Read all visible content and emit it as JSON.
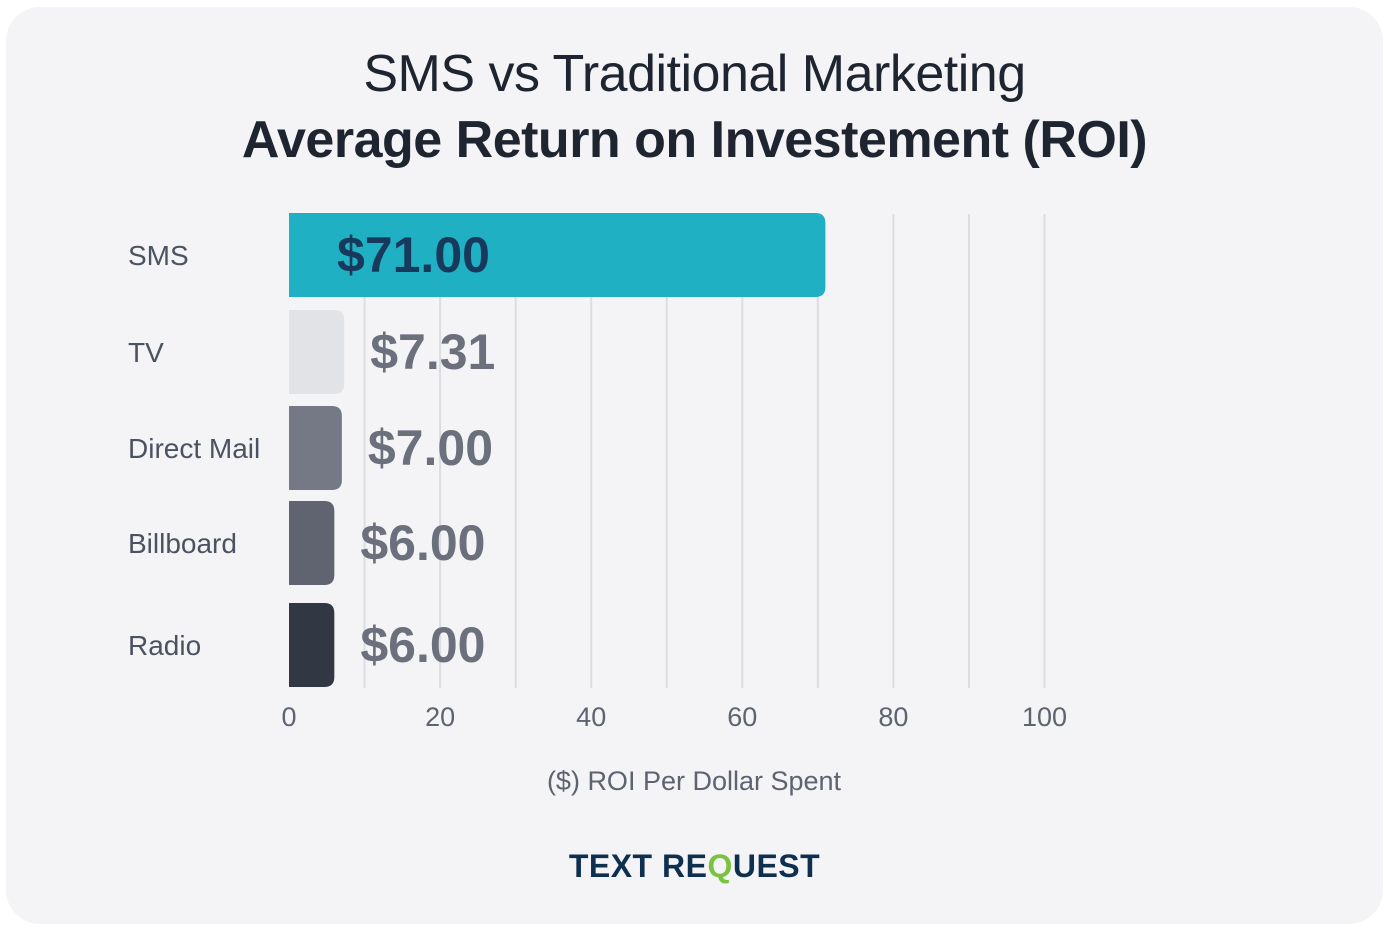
{
  "chart_data": {
    "type": "bar",
    "orientation": "horizontal",
    "title": "SMS vs Traditional Marketing",
    "subtitle": "Average Return on Investement (ROI)",
    "categories": [
      "SMS",
      "TV",
      "Direct Mail",
      "Billboard",
      "Radio"
    ],
    "values": [
      71.0,
      7.31,
      7.0,
      6.0,
      6.0
    ],
    "data_labels": [
      "$71.00",
      "$7.31",
      "$7.00",
      "$6.00",
      "$6.00"
    ],
    "bar_colors": [
      "#1fb0c3",
      "#e2e3e6",
      "#747985",
      "#5f6470",
      "#313743"
    ],
    "label_colors": [
      "#173a5c",
      "#6b707c",
      "#6b707c",
      "#6b707c",
      "#6b707c"
    ],
    "xlabel": "($) ROI Per Dollar Spent",
    "ylabel": "",
    "xlim": [
      0,
      100
    ],
    "x_ticks": [
      0,
      20,
      40,
      60,
      80,
      100
    ],
    "grid": true
  },
  "brand": {
    "prefix": "TEXT RE",
    "q": "Q",
    "suffix": "UEST",
    "color": "#0f2f4f",
    "accent_color": "#7cc242"
  }
}
